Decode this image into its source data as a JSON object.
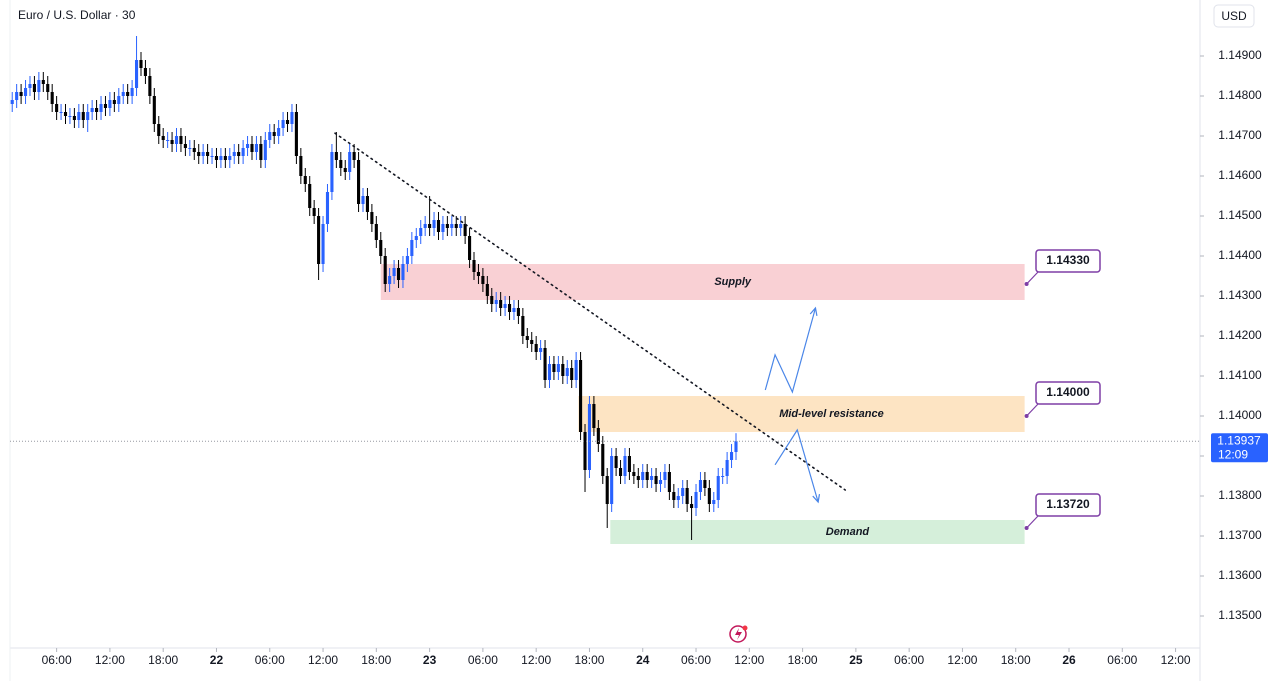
{
  "chart_data": {
    "type": "candlestick",
    "title": "Euro / U.S. Dollar · 30",
    "currency": "USD",
    "up_color": "#2962ff",
    "down_color": "#000000",
    "open": [
      1.1478,
      1.1479,
      1.1481,
      1.148,
      1.1482,
      1.1483,
      1.1481,
      1.1484,
      1.1483,
      1.1481,
      1.1478,
      1.1476,
      1.1476,
      1.1475,
      1.1475,
      1.1474,
      1.1476,
      1.1474,
      1.1476,
      1.1477,
      1.1476,
      1.1478,
      1.1477,
      1.1479,
      1.1478,
      1.148,
      1.1481,
      1.148,
      1.1482,
      1.1489,
      1.1487,
      1.1485,
      1.148,
      1.1473,
      1.147,
      1.1469,
      1.1469,
      1.1468,
      1.147,
      1.1468,
      1.1467,
      1.1467,
      1.1466,
      1.1465,
      1.1466,
      1.1465,
      1.1465,
      1.1464,
      1.1465,
      1.1464,
      1.1465,
      1.1466,
      1.1465,
      1.1467,
      1.1468,
      1.1466,
      1.1468,
      1.1464,
      1.1469,
      1.1471,
      1.147,
      1.1472,
      1.1474,
      1.1473,
      1.1476,
      1.1465,
      1.146,
      1.1458,
      1.1452,
      1.145,
      1.1438,
      1.1448,
      1.1456,
      1.1466,
      1.1464,
      1.1462,
      1.1461,
      1.1466,
      1.1464,
      1.1453,
      1.1455,
      1.1451,
      1.1448,
      1.1444,
      1.144,
      1.1433,
      1.1435,
      1.1437,
      1.1434,
      1.1438,
      1.144,
      1.1444,
      1.1445,
      1.1447,
      1.1448,
      1.1447,
      1.1449,
      1.1446,
      1.1448,
      1.1447,
      1.1448,
      1.1447,
      1.1448,
      1.1445,
      1.1439,
      1.1436,
      1.1435,
      1.1433,
      1.143,
      1.1428,
      1.1429,
      1.1427,
      1.1428,
      1.1426,
      1.1427,
      1.1425,
      1.142,
      1.1419,
      1.1418,
      1.1416,
      1.1417,
      1.1409,
      1.1413,
      1.1411,
      1.1413,
      1.141,
      1.1412,
      1.1409,
      1.1414,
      1.1396,
      1.13865,
      1.1403,
      1.1397,
      1.1393,
      1.1385,
      1.1378,
      1.139,
      1.1387,
      1.1385,
      1.139,
      1.1386,
      1.1385,
      1.1384,
      1.1386,
      1.1384,
      1.1385,
      1.1383,
      1.1384,
      1.1386,
      1.1381,
      1.1379,
      1.138,
      1.1382,
      1.1378,
      1.1377,
      1.1381,
      1.1384,
      1.1382,
      1.1378,
      1.1379,
      1.1385,
      1.1385,
      1.1389,
      1.1391
    ],
    "high": [
      1.1481,
      1.1483,
      1.1483,
      1.1484,
      1.1485,
      1.1485,
      1.1486,
      1.1486,
      1.1485,
      1.1483,
      1.148,
      1.1478,
      1.1478,
      1.1477,
      1.1477,
      1.1478,
      1.1478,
      1.1478,
      1.1479,
      1.1479,
      1.148,
      1.148,
      1.1481,
      1.1481,
      1.1482,
      1.1483,
      1.1483,
      1.1484,
      1.1495,
      1.1491,
      1.1489,
      1.1487,
      1.1482,
      1.1475,
      1.1472,
      1.1471,
      1.1471,
      1.1472,
      1.1472,
      1.147,
      1.1469,
      1.1469,
      1.1468,
      1.1468,
      1.1468,
      1.1467,
      1.1467,
      1.1467,
      1.1467,
      1.1467,
      1.1468,
      1.1468,
      1.1469,
      1.147,
      1.147,
      1.147,
      1.147,
      1.1471,
      1.1473,
      1.1473,
      1.1474,
      1.1476,
      1.1476,
      1.1478,
      1.1478,
      1.1467,
      1.1462,
      1.146,
      1.1454,
      1.1452,
      1.145,
      1.1458,
      1.1468,
      1.1471,
      1.1466,
      1.1464,
      1.1468,
      1.1468,
      1.1466,
      1.1457,
      1.1457,
      1.1453,
      1.145,
      1.1446,
      1.1442,
      1.1437,
      1.1439,
      1.1439,
      1.144,
      1.1442,
      1.1446,
      1.1447,
      1.1449,
      1.145,
      1.1455,
      1.1451,
      1.1451,
      1.145,
      1.145,
      1.145,
      1.145,
      1.145,
      1.145,
      1.1447,
      1.1441,
      1.1438,
      1.1437,
      1.1435,
      1.1432,
      1.1431,
      1.1431,
      1.143,
      1.143,
      1.1429,
      1.1429,
      1.1427,
      1.1422,
      1.1421,
      1.142,
      1.1419,
      1.1419,
      1.1415,
      1.1415,
      1.1415,
      1.1415,
      1.1414,
      1.1414,
      1.1416,
      1.1416,
      1.1398,
      1.1405,
      1.1405,
      1.1399,
      1.1395,
      1.1387,
      1.1392,
      1.1392,
      1.1389,
      1.1392,
      1.1392,
      1.1388,
      1.1387,
      1.1388,
      1.1388,
      1.1387,
      1.1387,
      1.1386,
      1.1388,
      1.1388,
      1.1383,
      1.1382,
      1.1384,
      1.1384,
      1.138,
      1.1383,
      1.1386,
      1.1386,
      1.1384,
      1.1381,
      1.1387,
      1.1387,
      1.1391,
      1.1393,
      1.13957
    ],
    "low": [
      1.1476,
      1.1477,
      1.1478,
      1.1478,
      1.148,
      1.1479,
      1.1479,
      1.1481,
      1.1479,
      1.1476,
      1.1474,
      1.1474,
      1.1473,
      1.1473,
      1.1472,
      1.1472,
      1.1472,
      1.1471,
      1.1474,
      1.1474,
      1.1474,
      1.1475,
      1.1475,
      1.1476,
      1.1476,
      1.1478,
      1.1478,
      1.1478,
      1.148,
      1.1485,
      1.1483,
      1.1478,
      1.1471,
      1.1468,
      1.1467,
      1.1467,
      1.1466,
      1.1466,
      1.1466,
      1.1465,
      1.1465,
      1.1464,
      1.1463,
      1.1463,
      1.1463,
      1.1463,
      1.1462,
      1.1462,
      1.1462,
      1.1462,
      1.1463,
      1.1463,
      1.1463,
      1.1465,
      1.1464,
      1.1464,
      1.1462,
      1.1462,
      1.1467,
      1.1468,
      1.1468,
      1.147,
      1.1471,
      1.1471,
      1.1463,
      1.1458,
      1.1456,
      1.145,
      1.1448,
      1.1434,
      1.1436,
      1.1446,
      1.1454,
      1.1462,
      1.146,
      1.1459,
      1.1459,
      1.1462,
      1.1451,
      1.1451,
      1.1449,
      1.1446,
      1.1442,
      1.1438,
      1.1431,
      1.1431,
      1.1433,
      1.1432,
      1.1432,
      1.1436,
      1.1438,
      1.1442,
      1.1443,
      1.1445,
      1.1445,
      1.1445,
      1.1444,
      1.1444,
      1.1445,
      1.1445,
      1.1445,
      1.1445,
      1.1443,
      1.1437,
      1.1434,
      1.1433,
      1.1431,
      1.1428,
      1.1426,
      1.1426,
      1.1425,
      1.1425,
      1.1424,
      1.1424,
      1.1423,
      1.1418,
      1.1417,
      1.1416,
      1.1414,
      1.1414,
      1.1407,
      1.1407,
      1.1409,
      1.1409,
      1.1408,
      1.1408,
      1.1407,
      1.1407,
      1.1394,
      1.1381,
      1.13845,
      1.1395,
      1.1391,
      1.1383,
      1.1372,
      1.1376,
      1.1385,
      1.1383,
      1.1383,
      1.1384,
      1.1383,
      1.1382,
      1.1382,
      1.1382,
      1.1382,
      1.1381,
      1.1381,
      1.1382,
      1.1379,
      1.1377,
      1.1377,
      1.1378,
      1.1376,
      1.1369,
      1.1375,
      1.1379,
      1.138,
      1.1376,
      1.1376,
      1.1377,
      1.1383,
      1.1383,
      1.1387,
      1.1389
    ],
    "close": [
      1.1479,
      1.1481,
      1.148,
      1.1482,
      1.1483,
      1.1481,
      1.1484,
      1.1483,
      1.1481,
      1.1478,
      1.1476,
      1.1476,
      1.1475,
      1.1475,
      1.1474,
      1.1476,
      1.1474,
      1.1476,
      1.1477,
      1.1476,
      1.1478,
      1.1477,
      1.1479,
      1.1478,
      1.148,
      1.1481,
      1.148,
      1.1482,
      1.1489,
      1.1487,
      1.1485,
      1.148,
      1.1473,
      1.147,
      1.1469,
      1.1469,
      1.1468,
      1.147,
      1.1468,
      1.1467,
      1.1467,
      1.1466,
      1.1465,
      1.1466,
      1.1465,
      1.1465,
      1.1464,
      1.1465,
      1.1464,
      1.1465,
      1.1466,
      1.1465,
      1.1467,
      1.1468,
      1.1466,
      1.1468,
      1.1464,
      1.1469,
      1.1471,
      1.147,
      1.1472,
      1.1474,
      1.1473,
      1.1476,
      1.1465,
      1.146,
      1.1458,
      1.1452,
      1.145,
      1.1438,
      1.1448,
      1.1456,
      1.1466,
      1.1464,
      1.1462,
      1.1461,
      1.1466,
      1.1464,
      1.1453,
      1.1455,
      1.1451,
      1.1448,
      1.1444,
      1.144,
      1.1433,
      1.1435,
      1.1437,
      1.1434,
      1.1438,
      1.144,
      1.1444,
      1.1445,
      1.1447,
      1.1448,
      1.1447,
      1.1449,
      1.1446,
      1.1448,
      1.1447,
      1.1448,
      1.1447,
      1.1448,
      1.1445,
      1.1439,
      1.1436,
      1.1435,
      1.1433,
      1.143,
      1.1428,
      1.1429,
      1.1427,
      1.1428,
      1.1426,
      1.1427,
      1.1425,
      1.142,
      1.1419,
      1.1418,
      1.1416,
      1.1417,
      1.1409,
      1.1413,
      1.1411,
      1.1413,
      1.141,
      1.1412,
      1.1409,
      1.1414,
      1.1396,
      1.13865,
      1.1403,
      1.1397,
      1.1393,
      1.1385,
      1.1378,
      1.139,
      1.1387,
      1.1385,
      1.139,
      1.1386,
      1.1385,
      1.1384,
      1.1386,
      1.1384,
      1.1385,
      1.1383,
      1.1384,
      1.1386,
      1.1381,
      1.1379,
      1.138,
      1.1382,
      1.1378,
      1.1377,
      1.1381,
      1.1384,
      1.1382,
      1.1378,
      1.1379,
      1.1385,
      1.1385,
      1.1389,
      1.1391,
      1.13937
    ],
    "xlim": [
      -0.5,
      267.5
    ],
    "xticks": [
      {
        "value": 10,
        "label": "06:00"
      },
      {
        "value": 22,
        "label": "12:00"
      },
      {
        "value": 34,
        "label": "18:00"
      },
      {
        "value": 46,
        "label": "22"
      },
      {
        "value": 58,
        "label": "06:00"
      },
      {
        "value": 70,
        "label": "12:00"
      },
      {
        "value": 82,
        "label": "18:00"
      },
      {
        "value": 94,
        "label": "23"
      },
      {
        "value": 106,
        "label": "06:00"
      },
      {
        "value": 118,
        "label": "12:00"
      },
      {
        "value": 130,
        "label": "18:00"
      },
      {
        "value": 142,
        "label": "24"
      },
      {
        "value": 154,
        "label": "06:00"
      },
      {
        "value": 166,
        "label": "12:00"
      },
      {
        "value": 178,
        "label": "18:00"
      },
      {
        "value": 190,
        "label": "25"
      },
      {
        "value": 202,
        "label": "06:00"
      },
      {
        "value": 214,
        "label": "12:00"
      },
      {
        "value": 226,
        "label": "18:00"
      },
      {
        "value": 238,
        "label": "26"
      },
      {
        "value": 250,
        "label": "06:00"
      },
      {
        "value": 262,
        "label": "12:00"
      }
    ],
    "ylim": [
      1.1342,
      1.15015
    ],
    "yticks": [
      {
        "value": 1.135,
        "label": "1.13500"
      },
      {
        "value": 1.136,
        "label": "1.13600"
      },
      {
        "value": 1.137,
        "label": "1.13700"
      },
      {
        "value": 1.138,
        "label": "1.13800"
      },
      {
        "value": 1.139,
        "label": "1.13900"
      },
      {
        "value": 1.14,
        "label": "1.14000"
      },
      {
        "value": 1.141,
        "label": "1.14100"
      },
      {
        "value": 1.142,
        "label": "1.14200"
      },
      {
        "value": 1.143,
        "label": "1.14300"
      },
      {
        "value": 1.144,
        "label": "1.14400"
      },
      {
        "value": 1.145,
        "label": "1.14500"
      },
      {
        "value": 1.146,
        "label": "1.14600"
      },
      {
        "value": 1.147,
        "label": "1.14700"
      },
      {
        "value": 1.148,
        "label": "1.14800"
      },
      {
        "value": 1.149,
        "label": "1.14900"
      }
    ],
    "grid": false,
    "countdown": "12:09",
    "last_price_color": "#2962ff",
    "zones": [
      {
        "name": "Supply",
        "color": "#f9d0d4",
        "x": [
          83,
          228
        ],
        "y": [
          1.1429,
          1.1438
        ]
      },
      {
        "name": "Mid-level resistance",
        "color": "#fde4c3",
        "x": [
          127.5,
          228
        ],
        "y": [
          1.1396,
          1.1405
        ]
      },
      {
        "name": "Demand",
        "color": "#d5efda",
        "x": [
          134.7,
          228
        ],
        "y": [
          1.1368,
          1.1374
        ]
      }
    ],
    "levels": [
      {
        "value": 1.1433,
        "label": "1.14330"
      },
      {
        "value": 1.14,
        "label": "1.14000"
      },
      {
        "value": 1.1372,
        "label": "1.13720"
      }
    ],
    "level_color": "#7e3ea6",
    "trendline": {
      "x": [
        72.7,
        187.6
      ],
      "y": [
        1.14707,
        1.13815
      ]
    },
    "arrow_color": "#4a86e8",
    "arrows": [
      {
        "x": [
          169.6,
          171.8,
          175.7,
          180.9
        ],
        "y": [
          1.14065,
          1.14153,
          1.1406,
          1.1427
        ]
      },
      {
        "x": [
          171.8,
          176.8,
          181.5
        ],
        "y": [
          1.13878,
          1.13965,
          1.13785
        ]
      }
    ]
  }
}
